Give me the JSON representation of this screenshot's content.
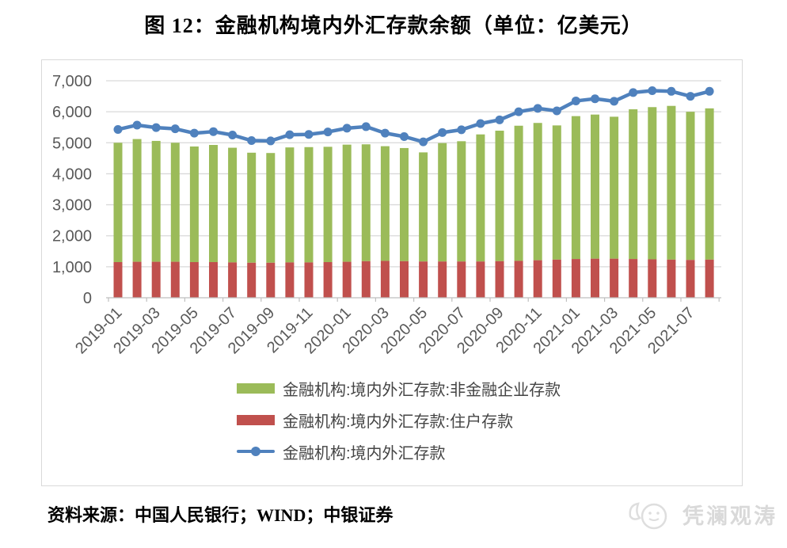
{
  "title": "图 12：金融机构境内外汇存款余额（单位：亿美元）",
  "source": "资料来源：中国人民银行；WIND；中银证券",
  "watermark": {
    "text": "凭澜观涛"
  },
  "colors": {
    "enterprise_bar": "#9BBB59",
    "household_bar": "#C0504D",
    "total_line": "#4F81BD",
    "gridline": "#D9D9D9",
    "axis_line": "#BFBFBF",
    "axis_text": "#595959",
    "chart_border": "#D9D9D9",
    "watermark_gray": "#D9D9D9"
  },
  "chart_data": {
    "type": "bar",
    "subtype": "stacked-bars-with-line",
    "title": "图 12：金融机构境内外汇存款余额（单位：亿美元）",
    "xlabel": "",
    "ylabel": "",
    "ylim": [
      0,
      7000
    ],
    "yticks": [
      0,
      1000,
      2000,
      3000,
      4000,
      5000,
      6000,
      7000
    ],
    "grid": true,
    "legend_position": "bottom-left-inside",
    "categories": [
      "2019-01",
      "2019-02",
      "2019-03",
      "2019-04",
      "2019-05",
      "2019-06",
      "2019-07",
      "2019-08",
      "2019-09",
      "2019-10",
      "2019-11",
      "2019-12",
      "2020-01",
      "2020-02",
      "2020-03",
      "2020-04",
      "2020-05",
      "2020-06",
      "2020-07",
      "2020-08",
      "2020-09",
      "2020-10",
      "2020-11",
      "2020-12",
      "2021-01",
      "2021-02",
      "2021-03",
      "2021-04",
      "2021-05",
      "2021-06",
      "2021-07",
      "2021-08"
    ],
    "x_tick_labels": [
      "2019-01",
      "2019-03",
      "2019-05",
      "2019-07",
      "2019-09",
      "2019-11",
      "2020-01",
      "2020-03",
      "2020-05",
      "2020-07",
      "2020-09",
      "2020-11",
      "2021-01",
      "2021-03",
      "2021-05",
      "2021-07"
    ],
    "series": [
      {
        "name": "金融机构:境内外汇存款:非金融企业存款",
        "type": "bar",
        "stack": "deposits",
        "color": "#9BBB59",
        "values": [
          3850,
          3960,
          3900,
          3840,
          3730,
          3780,
          3700,
          3550,
          3540,
          3710,
          3720,
          3720,
          3780,
          3770,
          3700,
          3650,
          3520,
          3820,
          3880,
          4100,
          4210,
          4360,
          4430,
          4330,
          4610,
          4650,
          4580,
          4830,
          4910,
          4960,
          4780,
          4880
        ]
      },
      {
        "name": "金融机构:境内外汇存款:住户存款",
        "type": "bar",
        "stack": "deposits",
        "color": "#C0504D",
        "values": [
          1150,
          1160,
          1160,
          1160,
          1150,
          1150,
          1140,
          1130,
          1130,
          1140,
          1140,
          1150,
          1160,
          1180,
          1190,
          1180,
          1170,
          1170,
          1170,
          1170,
          1180,
          1190,
          1210,
          1230,
          1250,
          1260,
          1260,
          1250,
          1240,
          1230,
          1220,
          1230
        ]
      },
      {
        "name": "金融机构:境内外汇存款",
        "type": "line",
        "color": "#4F81BD",
        "values": [
          5430,
          5570,
          5490,
          5450,
          5310,
          5360,
          5250,
          5070,
          5060,
          5260,
          5270,
          5350,
          5470,
          5520,
          5310,
          5200,
          5030,
          5330,
          5420,
          5620,
          5740,
          6000,
          6110,
          6030,
          6350,
          6420,
          6340,
          6620,
          6680,
          6660,
          6500,
          6660
        ]
      }
    ]
  }
}
